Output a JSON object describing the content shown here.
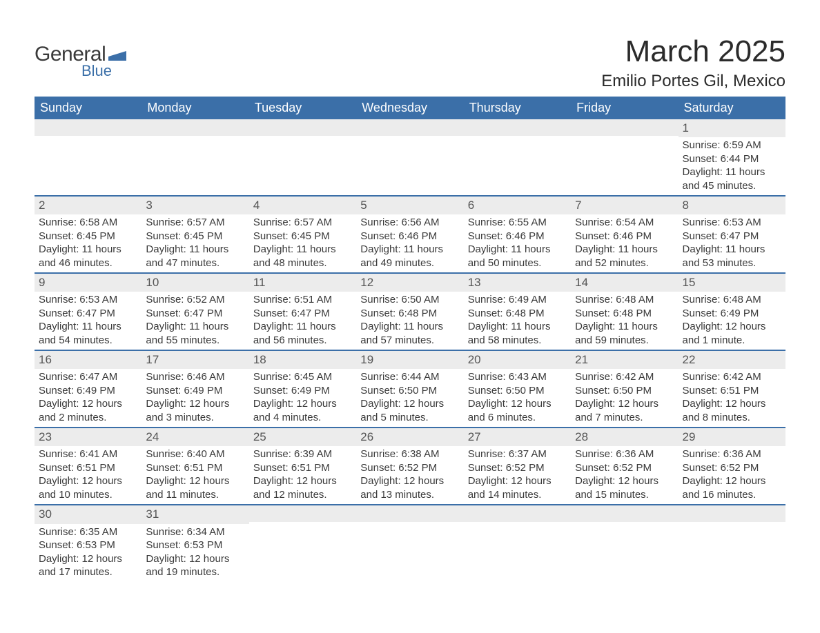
{
  "logo": {
    "word1": "General",
    "word2": "Blue",
    "shape_color": "#3b6fa8"
  },
  "title": "March 2025",
  "location": "Emilio Portes Gil, Mexico",
  "colors": {
    "header_bg": "#3b6fa8",
    "header_text": "#ffffff",
    "band_bg": "#ececec",
    "body_text": "#3a3a3a",
    "rule": "#3b6fa8",
    "page_bg": "#ffffff"
  },
  "typography": {
    "title_fontsize": 44,
    "location_fontsize": 24,
    "dayhead_fontsize": 18,
    "daynum_fontsize": 17,
    "cell_fontsize": 15
  },
  "day_headers": [
    "Sunday",
    "Monday",
    "Tuesday",
    "Wednesday",
    "Thursday",
    "Friday",
    "Saturday"
  ],
  "weeks": [
    [
      {
        "blank": true
      },
      {
        "blank": true
      },
      {
        "blank": true
      },
      {
        "blank": true
      },
      {
        "blank": true
      },
      {
        "blank": true
      },
      {
        "day": "1",
        "sunrise": "Sunrise: 6:59 AM",
        "sunset": "Sunset: 6:44 PM",
        "daylight": "Daylight: 11 hours and 45 minutes."
      }
    ],
    [
      {
        "day": "2",
        "sunrise": "Sunrise: 6:58 AM",
        "sunset": "Sunset: 6:45 PM",
        "daylight": "Daylight: 11 hours and 46 minutes."
      },
      {
        "day": "3",
        "sunrise": "Sunrise: 6:57 AM",
        "sunset": "Sunset: 6:45 PM",
        "daylight": "Daylight: 11 hours and 47 minutes."
      },
      {
        "day": "4",
        "sunrise": "Sunrise: 6:57 AM",
        "sunset": "Sunset: 6:45 PM",
        "daylight": "Daylight: 11 hours and 48 minutes."
      },
      {
        "day": "5",
        "sunrise": "Sunrise: 6:56 AM",
        "sunset": "Sunset: 6:46 PM",
        "daylight": "Daylight: 11 hours and 49 minutes."
      },
      {
        "day": "6",
        "sunrise": "Sunrise: 6:55 AM",
        "sunset": "Sunset: 6:46 PM",
        "daylight": "Daylight: 11 hours and 50 minutes."
      },
      {
        "day": "7",
        "sunrise": "Sunrise: 6:54 AM",
        "sunset": "Sunset: 6:46 PM",
        "daylight": "Daylight: 11 hours and 52 minutes."
      },
      {
        "day": "8",
        "sunrise": "Sunrise: 6:53 AM",
        "sunset": "Sunset: 6:47 PM",
        "daylight": "Daylight: 11 hours and 53 minutes."
      }
    ],
    [
      {
        "day": "9",
        "sunrise": "Sunrise: 6:53 AM",
        "sunset": "Sunset: 6:47 PM",
        "daylight": "Daylight: 11 hours and 54 minutes."
      },
      {
        "day": "10",
        "sunrise": "Sunrise: 6:52 AM",
        "sunset": "Sunset: 6:47 PM",
        "daylight": "Daylight: 11 hours and 55 minutes."
      },
      {
        "day": "11",
        "sunrise": "Sunrise: 6:51 AM",
        "sunset": "Sunset: 6:47 PM",
        "daylight": "Daylight: 11 hours and 56 minutes."
      },
      {
        "day": "12",
        "sunrise": "Sunrise: 6:50 AM",
        "sunset": "Sunset: 6:48 PM",
        "daylight": "Daylight: 11 hours and 57 minutes."
      },
      {
        "day": "13",
        "sunrise": "Sunrise: 6:49 AM",
        "sunset": "Sunset: 6:48 PM",
        "daylight": "Daylight: 11 hours and 58 minutes."
      },
      {
        "day": "14",
        "sunrise": "Sunrise: 6:48 AM",
        "sunset": "Sunset: 6:48 PM",
        "daylight": "Daylight: 11 hours and 59 minutes."
      },
      {
        "day": "15",
        "sunrise": "Sunrise: 6:48 AM",
        "sunset": "Sunset: 6:49 PM",
        "daylight": "Daylight: 12 hours and 1 minute."
      }
    ],
    [
      {
        "day": "16",
        "sunrise": "Sunrise: 6:47 AM",
        "sunset": "Sunset: 6:49 PM",
        "daylight": "Daylight: 12 hours and 2 minutes."
      },
      {
        "day": "17",
        "sunrise": "Sunrise: 6:46 AM",
        "sunset": "Sunset: 6:49 PM",
        "daylight": "Daylight: 12 hours and 3 minutes."
      },
      {
        "day": "18",
        "sunrise": "Sunrise: 6:45 AM",
        "sunset": "Sunset: 6:49 PM",
        "daylight": "Daylight: 12 hours and 4 minutes."
      },
      {
        "day": "19",
        "sunrise": "Sunrise: 6:44 AM",
        "sunset": "Sunset: 6:50 PM",
        "daylight": "Daylight: 12 hours and 5 minutes."
      },
      {
        "day": "20",
        "sunrise": "Sunrise: 6:43 AM",
        "sunset": "Sunset: 6:50 PM",
        "daylight": "Daylight: 12 hours and 6 minutes."
      },
      {
        "day": "21",
        "sunrise": "Sunrise: 6:42 AM",
        "sunset": "Sunset: 6:50 PM",
        "daylight": "Daylight: 12 hours and 7 minutes."
      },
      {
        "day": "22",
        "sunrise": "Sunrise: 6:42 AM",
        "sunset": "Sunset: 6:51 PM",
        "daylight": "Daylight: 12 hours and 8 minutes."
      }
    ],
    [
      {
        "day": "23",
        "sunrise": "Sunrise: 6:41 AM",
        "sunset": "Sunset: 6:51 PM",
        "daylight": "Daylight: 12 hours and 10 minutes."
      },
      {
        "day": "24",
        "sunrise": "Sunrise: 6:40 AM",
        "sunset": "Sunset: 6:51 PM",
        "daylight": "Daylight: 12 hours and 11 minutes."
      },
      {
        "day": "25",
        "sunrise": "Sunrise: 6:39 AM",
        "sunset": "Sunset: 6:51 PM",
        "daylight": "Daylight: 12 hours and 12 minutes."
      },
      {
        "day": "26",
        "sunrise": "Sunrise: 6:38 AM",
        "sunset": "Sunset: 6:52 PM",
        "daylight": "Daylight: 12 hours and 13 minutes."
      },
      {
        "day": "27",
        "sunrise": "Sunrise: 6:37 AM",
        "sunset": "Sunset: 6:52 PM",
        "daylight": "Daylight: 12 hours and 14 minutes."
      },
      {
        "day": "28",
        "sunrise": "Sunrise: 6:36 AM",
        "sunset": "Sunset: 6:52 PM",
        "daylight": "Daylight: 12 hours and 15 minutes."
      },
      {
        "day": "29",
        "sunrise": "Sunrise: 6:36 AM",
        "sunset": "Sunset: 6:52 PM",
        "daylight": "Daylight: 12 hours and 16 minutes."
      }
    ],
    [
      {
        "day": "30",
        "sunrise": "Sunrise: 6:35 AM",
        "sunset": "Sunset: 6:53 PM",
        "daylight": "Daylight: 12 hours and 17 minutes."
      },
      {
        "day": "31",
        "sunrise": "Sunrise: 6:34 AM",
        "sunset": "Sunset: 6:53 PM",
        "daylight": "Daylight: 12 hours and 19 minutes."
      },
      {
        "blank": true
      },
      {
        "blank": true
      },
      {
        "blank": true
      },
      {
        "blank": true
      },
      {
        "blank": true
      }
    ]
  ]
}
